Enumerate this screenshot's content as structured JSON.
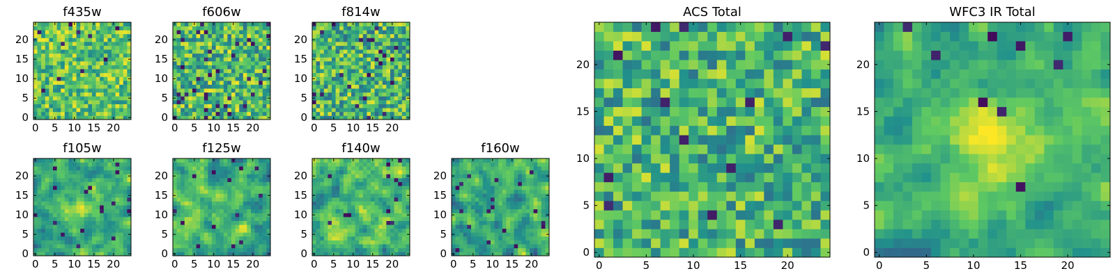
{
  "figure": {
    "colormap": "viridis",
    "colormap_stops": [
      "#440154",
      "#3b528b",
      "#21918c",
      "#5ec962",
      "#fde725"
    ]
  },
  "chart_data": [
    {
      "type": "heatmap",
      "title": "f435w",
      "grid_size": 25,
      "xlim": [
        0,
        24
      ],
      "ylim": [
        0,
        24
      ],
      "xticks": [
        "0",
        "5",
        "10",
        "15",
        "20"
      ],
      "yticks": [
        "0",
        "5",
        "10",
        "15",
        "20"
      ],
      "value_range": [
        0,
        1
      ],
      "seed": 11,
      "mean": 0.72,
      "spread": 0.26,
      "dark_fraction": 0.02,
      "smooth": 0
    },
    {
      "type": "heatmap",
      "title": "f606w",
      "grid_size": 25,
      "xlim": [
        0,
        24
      ],
      "ylim": [
        0,
        24
      ],
      "xticks": [
        "0",
        "5",
        "10",
        "15",
        "20"
      ],
      "yticks": [
        "0",
        "5",
        "10",
        "15",
        "20"
      ],
      "value_range": [
        0,
        1
      ],
      "seed": 23,
      "mean": 0.68,
      "spread": 0.3,
      "dark_fraction": 0.05,
      "smooth": 0
    },
    {
      "type": "heatmap",
      "title": "f814w",
      "grid_size": 25,
      "xlim": [
        0,
        24
      ],
      "ylim": [
        0,
        24
      ],
      "xticks": [
        "0",
        "5",
        "10",
        "15",
        "20"
      ],
      "yticks": [
        "0",
        "5",
        "10",
        "15",
        "20"
      ],
      "value_range": [
        0,
        1
      ],
      "seed": 37,
      "mean": 0.66,
      "spread": 0.3,
      "dark_fraction": 0.04,
      "smooth": 0
    },
    {
      "type": "heatmap",
      "title": "f105w",
      "grid_size": 25,
      "xlim": [
        0,
        24
      ],
      "ylim": [
        0,
        24
      ],
      "xticks": [
        "0",
        "5",
        "10",
        "15",
        "20"
      ],
      "yticks": [
        "0",
        "5",
        "10",
        "15",
        "20"
      ],
      "value_range": [
        0,
        1
      ],
      "seed": 41,
      "mean": 0.62,
      "spread": 0.3,
      "dark_fraction": 0.02,
      "smooth": 1,
      "blob": [
        12,
        12,
        5,
        0.25
      ]
    },
    {
      "type": "heatmap",
      "title": "f125w",
      "grid_size": 25,
      "xlim": [
        0,
        24
      ],
      "ylim": [
        0,
        24
      ],
      "xticks": [
        "0",
        "5",
        "10",
        "15",
        "20"
      ],
      "yticks": [
        "0",
        "5",
        "10",
        "15",
        "20"
      ],
      "value_range": [
        0,
        1
      ],
      "seed": 53,
      "mean": 0.64,
      "spread": 0.32,
      "dark_fraction": 0.03,
      "smooth": 1
    },
    {
      "type": "heatmap",
      "title": "f140w",
      "grid_size": 25,
      "xlim": [
        0,
        24
      ],
      "ylim": [
        0,
        24
      ],
      "xticks": [
        "0",
        "5",
        "10",
        "15",
        "20"
      ],
      "yticks": [
        "0",
        "5",
        "10",
        "15",
        "20"
      ],
      "value_range": [
        0,
        1
      ],
      "seed": 67,
      "mean": 0.66,
      "spread": 0.32,
      "dark_fraction": 0.02,
      "smooth": 1
    },
    {
      "type": "heatmap",
      "title": "f160w",
      "grid_size": 25,
      "xlim": [
        0,
        24
      ],
      "ylim": [
        0,
        24
      ],
      "xticks": [
        "0",
        "5",
        "10",
        "15",
        "20"
      ],
      "yticks": [
        "0",
        "5",
        "10",
        "15",
        "20"
      ],
      "value_range": [
        0,
        1
      ],
      "seed": 79,
      "mean": 0.6,
      "spread": 0.34,
      "dark_fraction": 0.04,
      "smooth": 1
    },
    {
      "type": "heatmap",
      "title": "ACS Total",
      "grid_size": 25,
      "xlim": [
        0,
        24
      ],
      "ylim": [
        0,
        24
      ],
      "xticks": [
        "0",
        "5",
        "10",
        "15",
        "20"
      ],
      "yticks": [
        "0",
        "5",
        "10",
        "15",
        "20"
      ],
      "value_range": [
        0,
        1
      ],
      "seed": 83,
      "mean": 0.66,
      "spread": 0.28,
      "dark_fraction": 0.025,
      "smooth": 0
    },
    {
      "type": "heatmap",
      "title": "WFC3 IR Total",
      "grid_size": 25,
      "xlim": [
        0,
        24
      ],
      "ylim": [
        0,
        24
      ],
      "xticks": [
        "0",
        "5",
        "10",
        "15",
        "20"
      ],
      "yticks": [
        "0",
        "5",
        "10",
        "15",
        "20"
      ],
      "value_range": [
        0,
        1
      ],
      "seed": 97,
      "mean": 0.6,
      "spread": 0.26,
      "dark_fraction": 0.015,
      "smooth": 1,
      "blob": [
        12,
        12,
        4,
        0.35
      ]
    }
  ]
}
